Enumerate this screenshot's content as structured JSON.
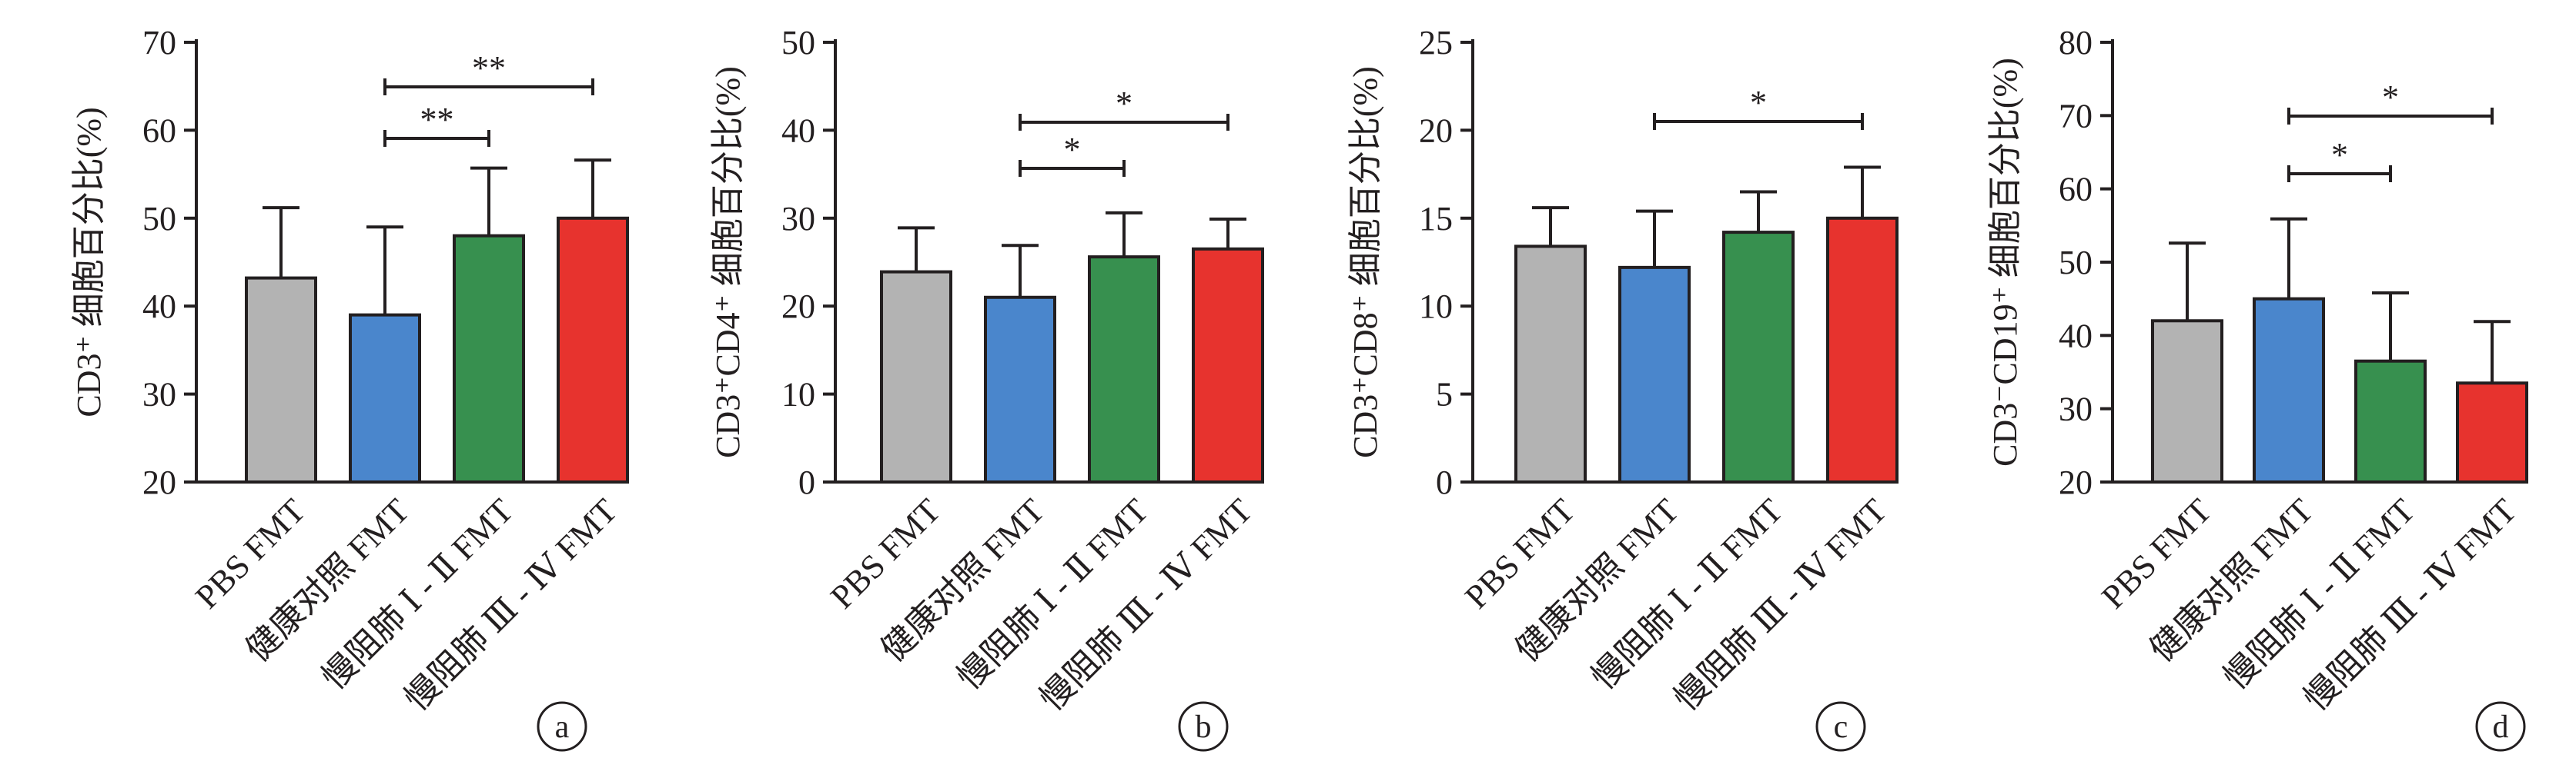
{
  "chart_data": [
    {
      "type": "bar",
      "panel": "a",
      "ylabel": "CD3⁺ 细胞百分比(%)",
      "ylim": [
        20,
        70
      ],
      "yticks": [
        20,
        30,
        40,
        50,
        60,
        70
      ],
      "categories": [
        "PBS FMT",
        "健康对照 FMT",
        "慢阻肺 Ⅰ - Ⅱ FMT",
        "慢阻肺 Ⅲ - Ⅳ FMT"
      ],
      "values": [
        43.2,
        39.0,
        48.0,
        50.0
      ],
      "error": [
        8.0,
        10.0,
        7.7,
        6.6
      ],
      "significance": [
        {
          "from": 1,
          "to": 2,
          "label": "**"
        },
        {
          "from": 1,
          "to": 3,
          "label": "**"
        }
      ]
    },
    {
      "type": "bar",
      "panel": "b",
      "ylabel": "CD3⁺CD4⁺ 细胞百分比(%)",
      "ylim": [
        0,
        50
      ],
      "yticks": [
        0,
        10,
        20,
        30,
        40,
        50
      ],
      "categories": [
        "PBS FMT",
        "健康对照 FMT",
        "慢阻肺 Ⅰ - Ⅱ FMT",
        "慢阻肺 Ⅲ - Ⅳ FMT"
      ],
      "values": [
        23.9,
        21.0,
        25.6,
        26.5
      ],
      "error": [
        5.0,
        5.9,
        5.0,
        3.4
      ],
      "significance": [
        {
          "from": 1,
          "to": 2,
          "label": "*"
        },
        {
          "from": 1,
          "to": 3,
          "label": "*"
        }
      ]
    },
    {
      "type": "bar",
      "panel": "c",
      "ylabel": "CD3⁺CD8⁺ 细胞百分比(%)",
      "ylim": [
        0,
        25
      ],
      "yticks": [
        0,
        5,
        10,
        15,
        20,
        25
      ],
      "categories": [
        "PBS FMT",
        "健康对照 FMT",
        "慢阻肺 Ⅰ - Ⅱ FMT",
        "慢阻肺 Ⅲ - Ⅳ FMT"
      ],
      "values": [
        13.4,
        12.2,
        14.2,
        15.0
      ],
      "error": [
        2.2,
        3.2,
        2.3,
        2.9
      ],
      "significance": [
        {
          "from": 1,
          "to": 3,
          "label": "*"
        }
      ]
    },
    {
      "type": "bar",
      "panel": "d",
      "ylabel": "CD3⁻CD19⁺ 细胞百分比(%)",
      "ylim": [
        20,
        80
      ],
      "yticks": [
        20,
        30,
        40,
        50,
        60,
        70,
        80
      ],
      "categories": [
        "PBS FMT",
        "健康对照 FMT",
        "慢阻肺 Ⅰ - Ⅱ FMT",
        "慢阻肺 Ⅲ - Ⅳ FMT"
      ],
      "values": [
        42.0,
        45.0,
        36.5,
        33.5
      ],
      "error": [
        10.6,
        10.9,
        9.3,
        8.4
      ],
      "significance": [
        {
          "from": 1,
          "to": 2,
          "label": "*"
        },
        {
          "from": 1,
          "to": 3,
          "label": "*"
        }
      ]
    }
  ],
  "bar_colors": [
    "#b3b3b3",
    "#4a86cc",
    "#37904f",
    "#e7332e"
  ],
  "axis_color": "#231f20"
}
